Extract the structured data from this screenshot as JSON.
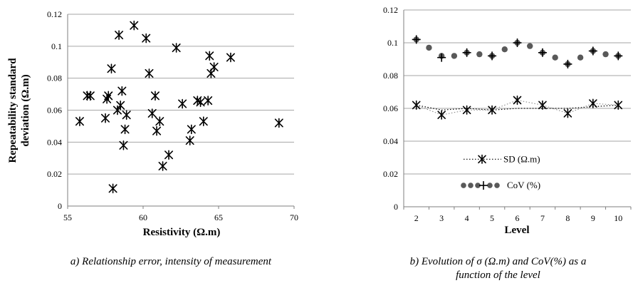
{
  "chart_data": [
    {
      "type": "scatter",
      "title": "",
      "xlabel": "Resistivity (Ω.m)",
      "ylabel_line1": "Repeatability standard",
      "ylabel_line2": "deviation (Ω.m)",
      "xlim": [
        55,
        70
      ],
      "ylim": [
        0,
        0.12
      ],
      "x_ticks": [
        "55",
        "60",
        "65",
        "70"
      ],
      "y_ticks": [
        "0",
        "0.02",
        "0.04",
        "0.06",
        "0.08",
        "0.1",
        "0.12"
      ],
      "grid": "horizontal",
      "points": [
        {
          "x": 55.8,
          "y": 0.053
        },
        {
          "x": 56.3,
          "y": 0.069
        },
        {
          "x": 56.5,
          "y": 0.069
        },
        {
          "x": 57.5,
          "y": 0.055
        },
        {
          "x": 57.6,
          "y": 0.067
        },
        {
          "x": 57.7,
          "y": 0.069
        },
        {
          "x": 57.9,
          "y": 0.086
        },
        {
          "x": 58.0,
          "y": 0.011
        },
        {
          "x": 58.3,
          "y": 0.06
        },
        {
          "x": 58.4,
          "y": 0.107
        },
        {
          "x": 58.5,
          "y": 0.063
        },
        {
          "x": 58.6,
          "y": 0.072
        },
        {
          "x": 58.7,
          "y": 0.038
        },
        {
          "x": 58.8,
          "y": 0.048
        },
        {
          "x": 58.9,
          "y": 0.057
        },
        {
          "x": 59.4,
          "y": 0.113
        },
        {
          "x": 60.2,
          "y": 0.105
        },
        {
          "x": 60.4,
          "y": 0.083
        },
        {
          "x": 60.6,
          "y": 0.058
        },
        {
          "x": 60.8,
          "y": 0.069
        },
        {
          "x": 60.9,
          "y": 0.047
        },
        {
          "x": 61.1,
          "y": 0.053
        },
        {
          "x": 61.3,
          "y": 0.025
        },
        {
          "x": 61.7,
          "y": 0.032
        },
        {
          "x": 62.2,
          "y": 0.099
        },
        {
          "x": 62.6,
          "y": 0.064
        },
        {
          "x": 63.1,
          "y": 0.041
        },
        {
          "x": 63.2,
          "y": 0.048
        },
        {
          "x": 63.6,
          "y": 0.066
        },
        {
          "x": 63.8,
          "y": 0.065
        },
        {
          "x": 64.0,
          "y": 0.053
        },
        {
          "x": 64.3,
          "y": 0.066
        },
        {
          "x": 64.4,
          "y": 0.094
        },
        {
          "x": 64.5,
          "y": 0.083
        },
        {
          "x": 64.7,
          "y": 0.087
        },
        {
          "x": 65.8,
          "y": 0.093
        },
        {
          "x": 69.0,
          "y": 0.052
        }
      ]
    },
    {
      "type": "line",
      "title": "",
      "xlabel": "Level",
      "ylabel": "",
      "xlim": [
        1.5,
        10.5
      ],
      "ylim": [
        0,
        0.12
      ],
      "x_ticks": [
        "2",
        "3",
        "4",
        "5",
        "6",
        "7",
        "8",
        "9",
        "10"
      ],
      "y_ticks": [
        "0",
        "0.02",
        "0.04",
        "0.06",
        "0.08",
        "0.1",
        "0.12"
      ],
      "grid": "horizontal",
      "legend": "center-left",
      "series": [
        {
          "name": "SD (Ω.m)",
          "marker": "asterisk",
          "line": "dotted",
          "x": [
            2,
            3,
            4,
            5,
            6,
            7,
            8,
            9,
            10
          ],
          "y": [
            0.062,
            0.056,
            0.059,
            0.059,
            0.065,
            0.062,
            0.057,
            0.063,
            0.062
          ],
          "trend_y": [
            0.062,
            0.059,
            0.06,
            0.059,
            0.06,
            0.06,
            0.06,
            0.061,
            0.062
          ]
        },
        {
          "name": "CoV (%)",
          "marker": "plus",
          "line": "heavy-dotted",
          "x": [
            2,
            3,
            4,
            5,
            6,
            7,
            8,
            9,
            10
          ],
          "y": [
            0.102,
            0.091,
            0.094,
            0.092,
            0.1,
            0.094,
            0.087,
            0.095,
            0.092
          ],
          "trend_x": [
            2,
            2.5,
            3,
            3.5,
            4,
            4.5,
            5,
            5.5,
            6,
            6.5,
            7,
            7.5,
            8,
            8.5,
            9,
            9.5,
            10
          ],
          "trend_y": [
            0.102,
            0.097,
            0.092,
            0.092,
            0.094,
            0.093,
            0.092,
            0.096,
            0.1,
            0.098,
            0.094,
            0.091,
            0.087,
            0.091,
            0.095,
            0.093,
            0.092
          ]
        }
      ]
    }
  ],
  "captions": {
    "a": "a) Relationship error, intensity of measurement",
    "b_line1": "b) Evolution of σ (Ω.m) and CoV(%) as a",
    "b_line2": "function of the level"
  },
  "colors": {
    "grid": "#a6a6a6",
    "axis": "#7f7f7f",
    "marker": "#000000",
    "cov_dot": "#595959"
  }
}
